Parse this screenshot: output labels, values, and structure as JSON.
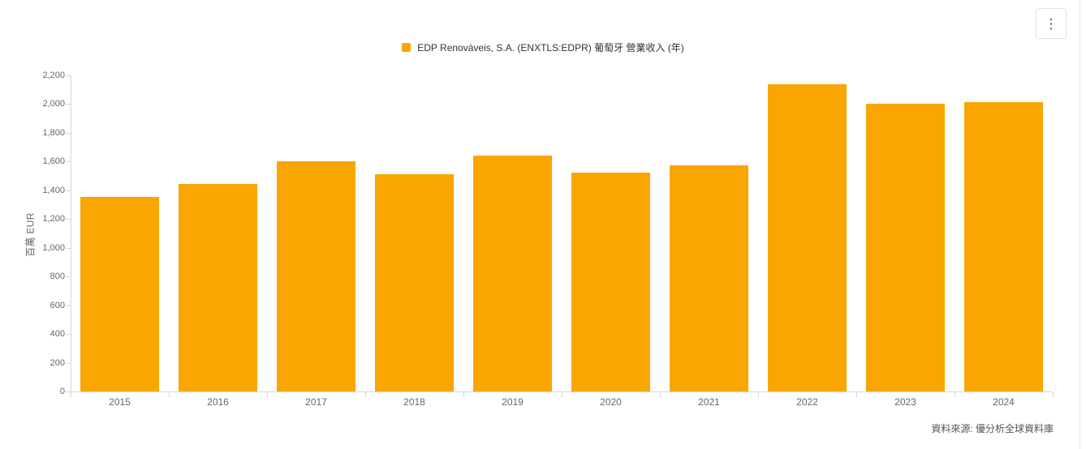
{
  "legend": {
    "label": "EDP Renováveis, S.A. (ENXTLS:EDPR) 葡萄牙 營業收入 (年)"
  },
  "menu": {
    "kebab_icon": "⋮"
  },
  "footer": {
    "source": "資料來源: 優分析全球資料庫"
  },
  "chart_data": {
    "type": "bar",
    "title": "",
    "series_name": "EDP Renováveis, S.A. (ENXTLS:EDPR) 葡萄牙 營業收入 (年)",
    "categories": [
      "2015",
      "2016",
      "2017",
      "2018",
      "2019",
      "2020",
      "2021",
      "2022",
      "2023",
      "2024"
    ],
    "values": [
      1355,
      1445,
      1600,
      1510,
      1640,
      1523,
      1575,
      2140,
      2005,
      2015
    ],
    "xlabel": "",
    "ylabel": "百萬 EUR",
    "ylim": [
      0,
      2200
    ],
    "ytick_step": 200,
    "ytick_labels": [
      "0",
      "200",
      "400",
      "600",
      "800",
      "1,000",
      "1,200",
      "1,400",
      "1,600",
      "1,800",
      "2,000",
      "2,200"
    ],
    "grid": false,
    "legend_position": "top-center",
    "bar_color": "#F9A602",
    "axis_line_color": "#ccd6eb",
    "tick_label_color": "#666666"
  }
}
